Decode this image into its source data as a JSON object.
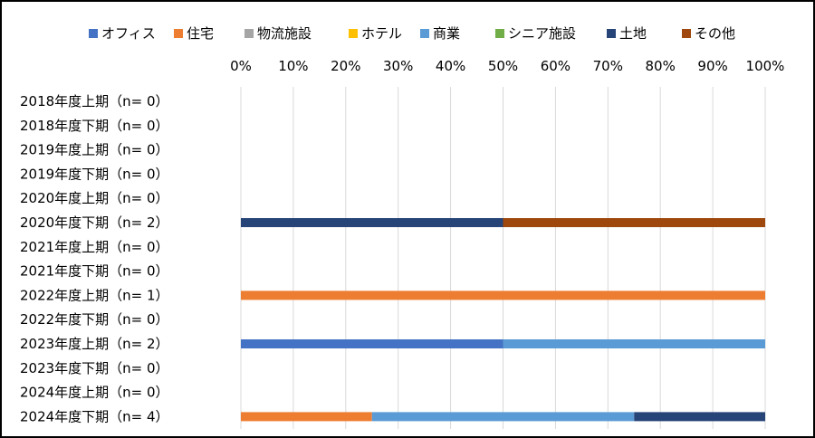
{
  "chart_data": {
    "type": "bar",
    "orientation": "horizontal",
    "stacked": true,
    "percent_stacked": true,
    "legend_position": "top",
    "grid": true,
    "xlim": [
      0,
      100
    ],
    "x_ticks": [
      "0%",
      "10%",
      "20%",
      "30%",
      "40%",
      "50%",
      "60%",
      "70%",
      "80%",
      "90%",
      "100%"
    ],
    "categories": [
      "2018年度上期（n=  0）",
      "2018年度下期（n=  0）",
      "2019年度上期（n=  0）",
      "2019年度下期（n=  0）",
      "2020年度上期（n=  0）",
      "2020年度下期（n=  2）",
      "2021年度上期（n=  0）",
      "2021年度下期（n=  0）",
      "2022年度上期（n=  1）",
      "2022年度下期（n=  0）",
      "2023年度上期（n=  2）",
      "2023年度下期（n=  0）",
      "2024年度上期（n=  0）",
      "2024年度下期（n=  4）"
    ],
    "series": [
      {
        "name": "オフィス",
        "color": "#4472C4",
        "values": [
          0,
          0,
          0,
          0,
          0,
          0,
          0,
          0,
          0,
          0,
          50,
          0,
          0,
          0
        ]
      },
      {
        "name": "住宅",
        "color": "#ED7D31",
        "values": [
          0,
          0,
          0,
          0,
          0,
          0,
          0,
          0,
          100,
          0,
          0,
          0,
          0,
          25
        ]
      },
      {
        "name": "物流施設",
        "color": "#A5A5A5",
        "values": [
          0,
          0,
          0,
          0,
          0,
          0,
          0,
          0,
          0,
          0,
          0,
          0,
          0,
          0
        ]
      },
      {
        "name": "ホテル",
        "color": "#FFC000",
        "values": [
          0,
          0,
          0,
          0,
          0,
          0,
          0,
          0,
          0,
          0,
          0,
          0,
          0,
          0
        ]
      },
      {
        "name": "商業",
        "color": "#5B9BD5",
        "values": [
          0,
          0,
          0,
          0,
          0,
          0,
          0,
          0,
          0,
          0,
          50,
          0,
          0,
          50
        ]
      },
      {
        "name": "シニア施設",
        "color": "#70AD47",
        "values": [
          0,
          0,
          0,
          0,
          0,
          0,
          0,
          0,
          0,
          0,
          0,
          0,
          0,
          0
        ]
      },
      {
        "name": "土地",
        "color": "#264478",
        "values": [
          0,
          0,
          0,
          0,
          0,
          50,
          0,
          0,
          0,
          0,
          0,
          0,
          0,
          25
        ]
      },
      {
        "name": "その他",
        "color": "#9E480E",
        "values": [
          0,
          0,
          0,
          0,
          0,
          50,
          0,
          0,
          0,
          0,
          0,
          0,
          0,
          0
        ]
      }
    ]
  }
}
